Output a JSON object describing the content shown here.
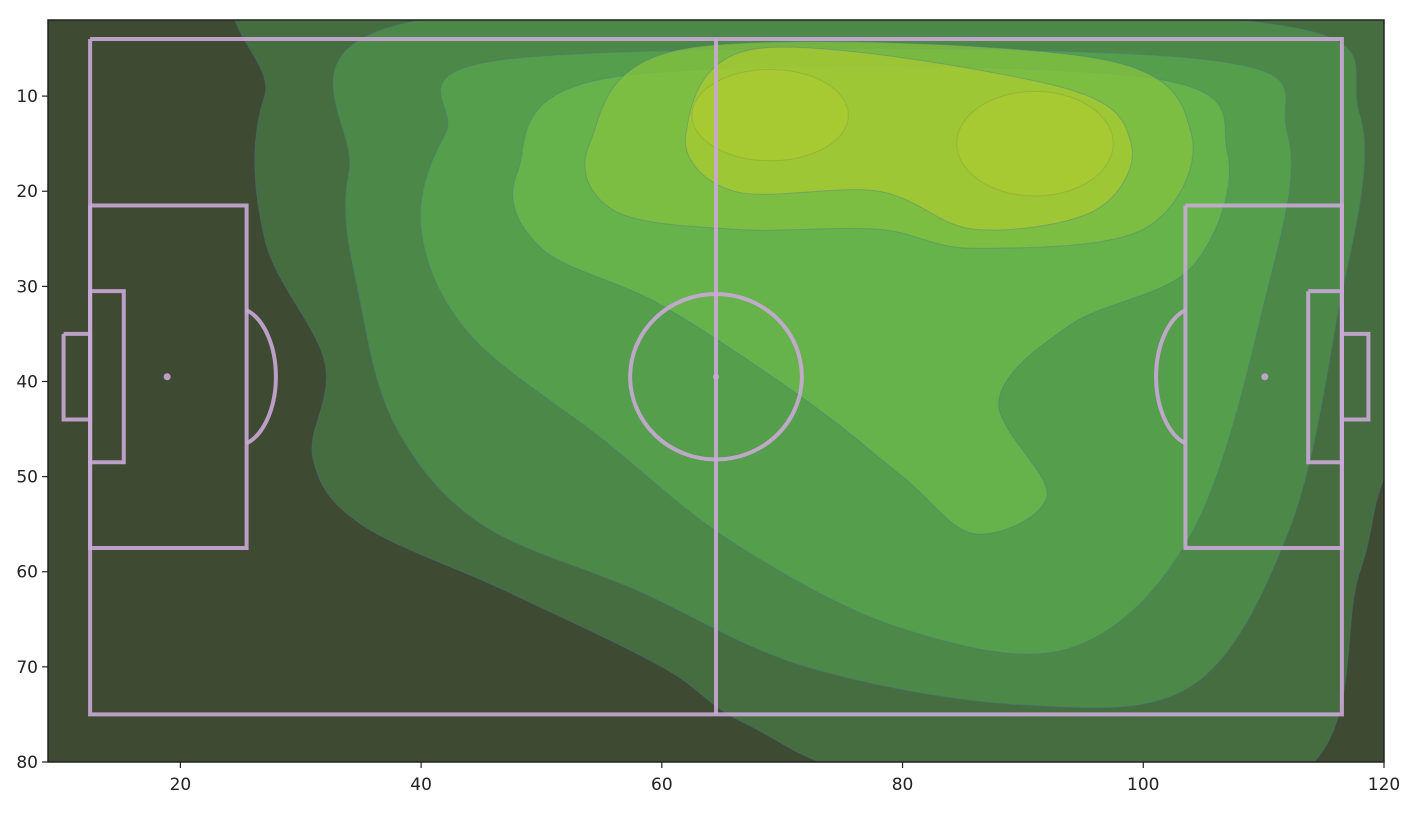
{
  "chart_data": {
    "type": "heatmap",
    "title": "",
    "xlabel": "",
    "ylabel": "",
    "xlim": [
      9,
      120
    ],
    "ylim": [
      80,
      2
    ],
    "x_ticks": [
      20,
      40,
      60,
      80,
      100,
      120
    ],
    "y_ticks": [
      10,
      20,
      30,
      40,
      50,
      60,
      70,
      80
    ],
    "x_tick_labels": [
      "20",
      "40",
      "60",
      "80",
      "100",
      "120"
    ],
    "y_tick_labels": [
      "10",
      "20",
      "30",
      "40",
      "50",
      "60",
      "70",
      "80"
    ],
    "grid": false,
    "legend": "none",
    "background_color": "#3f4a32",
    "pitch_line_color": "#c9a9d6",
    "density_levels": [
      {
        "level": 1,
        "color": "#3f5a3f"
      },
      {
        "level": 2,
        "color": "#4a7a45"
      },
      {
        "level": 3,
        "color": "#4f914a"
      },
      {
        "level": 4,
        "color": "#57a64d"
      },
      {
        "level": 5,
        "color": "#6bb94a"
      },
      {
        "level": 6,
        "color": "#84c23f"
      },
      {
        "level": 7,
        "color": "#a8c932"
      }
    ],
    "density_peaks": [
      {
        "x": 69,
        "y": 12,
        "level": 7
      },
      {
        "x": 91,
        "y": 15,
        "level": 7
      }
    ],
    "pitch": {
      "length": 104,
      "width": 71,
      "origin": [
        12.5,
        4
      ],
      "penalty_box_depth": 13,
      "penalty_box_width": 36,
      "six_yard_depth": 2.8,
      "six_yard_width": 18,
      "goal_depth": 2.2,
      "goal_width": 9,
      "center_circle_radius": 8.7,
      "penalty_spot_distance": 6.4
    }
  }
}
